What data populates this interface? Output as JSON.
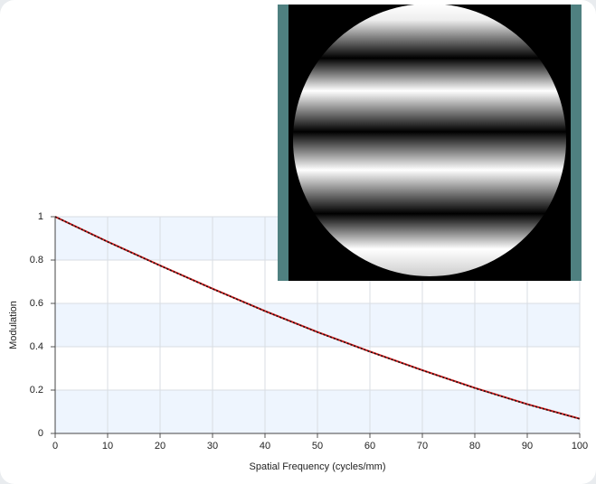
{
  "chart_data": {
    "type": "line",
    "x_label": "Spatial Frequency (cycles/mm)",
    "y_label": "Modulation",
    "x": [
      0,
      10,
      20,
      30,
      40,
      50,
      60,
      70,
      80,
      90,
      100
    ],
    "series": [
      {
        "color": "#d42020",
        "values": [
          1,
          0.885,
          0.775,
          0.668,
          0.565,
          0.468,
          0.378,
          0.292,
          0.21,
          0.135,
          0.068
        ]
      },
      {
        "color": "#111111",
        "dashed": true,
        "values": [
          1,
          0.884,
          0.774,
          0.667,
          0.564,
          0.467,
          0.377,
          0.291,
          0.209,
          0.134,
          0.067
        ]
      }
    ],
    "xlim": [
      0,
      100
    ],
    "xticks": [
      0,
      10,
      20,
      30,
      40,
      50,
      60,
      70,
      80,
      90,
      100
    ],
    "ylim": [
      0,
      1
    ],
    "yticks": [
      0,
      0.2,
      0.4,
      0.6,
      0.8,
      1
    ],
    "grid": true
  }
}
